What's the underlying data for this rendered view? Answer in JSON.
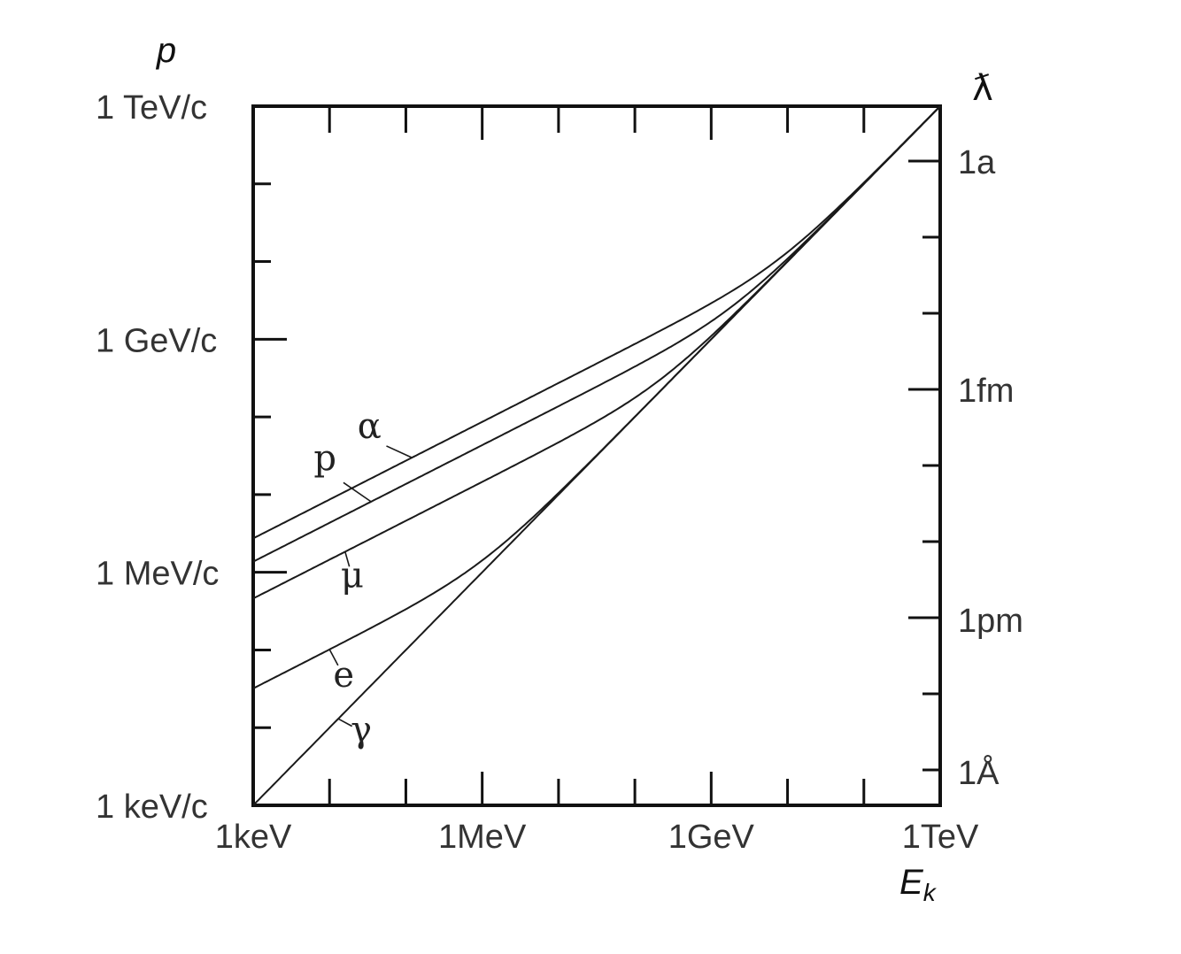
{
  "chart_data": {
    "type": "line",
    "title": "",
    "xlabel": "E",
    "xlabel_sub": "k",
    "ylabel": "p",
    "y2label": "ƛ",
    "x_scale": "log",
    "y_scale": "log",
    "xlim_eV": [
      1000,
      1000000000000
    ],
    "ylim_eV_per_c": [
      1000,
      1000000000000
    ],
    "x_ticks": [
      {
        "value": 1000,
        "label": "1keV"
      },
      {
        "value": 1000000,
        "label": "1MeV"
      },
      {
        "value": 1000000000,
        "label": "1GeV"
      },
      {
        "value": 1000000000000,
        "label": "1TeV"
      }
    ],
    "y_ticks_left": [
      {
        "value": 1000,
        "label": "1 keV/c"
      },
      {
        "value": 1000000,
        "label": "1 MeV/c"
      },
      {
        "value": 1000000000,
        "label": "1 GeV/c"
      },
      {
        "value": 1000000000000,
        "label": "1 TeV/c"
      }
    ],
    "y_ticks_right": [
      {
        "label": "1a",
        "wavelength_m": 1e-18
      },
      {
        "label": "1fm",
        "wavelength_m": 1e-15
      },
      {
        "label": "1pm",
        "wavelength_m": 1e-12
      },
      {
        "label": "1Å",
        "wavelength_m": 1e-10
      }
    ],
    "series": [
      {
        "name": "α",
        "rest_mass_eV": 3727000000
      },
      {
        "name": "p",
        "rest_mass_eV": 938300000
      },
      {
        "name": "μ",
        "rest_mass_eV": 105700000
      },
      {
        "name": "e",
        "rest_mass_eV": 511000
      },
      {
        "name": "γ",
        "rest_mass_eV": 0
      }
    ],
    "grid": false,
    "legend": "inline"
  }
}
